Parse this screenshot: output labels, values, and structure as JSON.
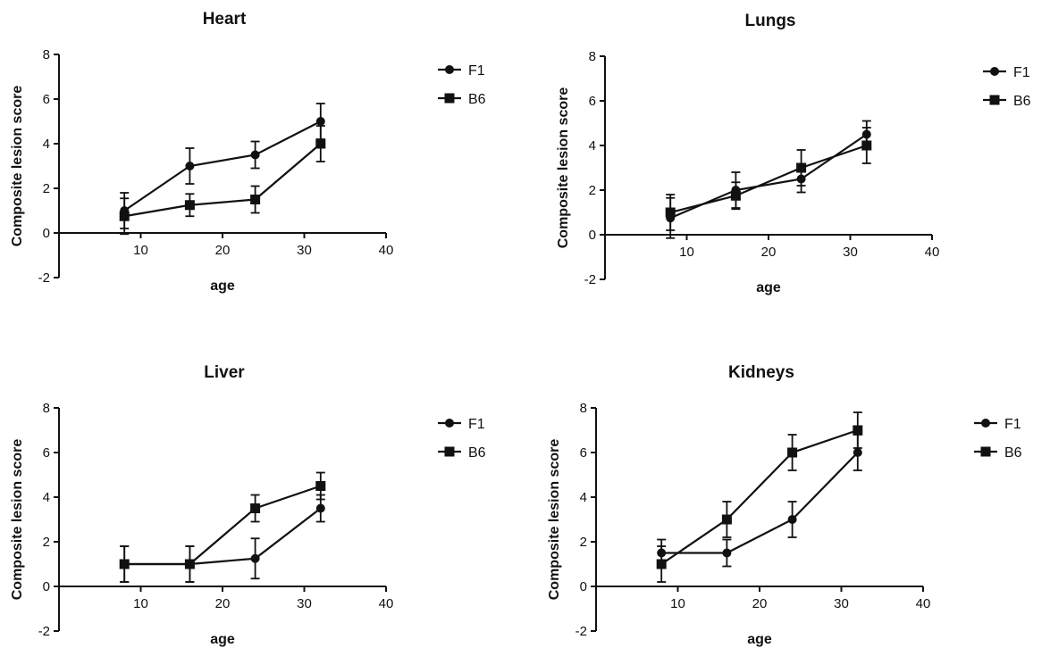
{
  "chart_data": [
    {
      "type": "line",
      "title": "Heart",
      "xlabel": "age",
      "ylabel": "Composite lesion score",
      "xlim": [
        0,
        40
      ],
      "ylim": [
        -2,
        8
      ],
      "xticks": [
        10,
        20,
        30,
        40
      ],
      "yticks": [
        -2,
        0,
        2,
        4,
        6,
        8
      ],
      "x": [
        8,
        16,
        24,
        32
      ],
      "legend_position": "right",
      "series": [
        {
          "name": "F1",
          "marker": "circle",
          "values": [
            1,
            3,
            3.5,
            5
          ],
          "errors": [
            0.8,
            0.8,
            0.6,
            0.8
          ]
        },
        {
          "name": "B6",
          "marker": "square",
          "values": [
            0.75,
            1.25,
            1.5,
            4
          ],
          "errors": [
            0.8,
            0.5,
            0.6,
            0.8
          ]
        }
      ]
    },
    {
      "type": "line",
      "title": "Lungs",
      "xlabel": "age",
      "ylabel": "Composite lesion score",
      "xlim": [
        0,
        40
      ],
      "ylim": [
        -2,
        8
      ],
      "xticks": [
        10,
        20,
        30,
        40
      ],
      "yticks": [
        -2,
        0,
        2,
        4,
        6,
        8
      ],
      "x": [
        8,
        16,
        24,
        32
      ],
      "legend_position": "right",
      "series": [
        {
          "name": "F1",
          "marker": "circle",
          "values": [
            0.75,
            2,
            2.5,
            4.5
          ],
          "errors": [
            0.9,
            0.8,
            0.6,
            0.6
          ]
        },
        {
          "name": "B6",
          "marker": "square",
          "values": [
            1,
            1.75,
            3,
            4
          ],
          "errors": [
            0.8,
            0.6,
            0.8,
            0.8
          ]
        }
      ]
    },
    {
      "type": "line",
      "title": "Liver",
      "xlabel": "age",
      "ylabel": "Composite lesion score",
      "xlim": [
        0,
        40
      ],
      "ylim": [
        -2,
        8
      ],
      "xticks": [
        10,
        20,
        30,
        40
      ],
      "yticks": [
        -2,
        0,
        2,
        4,
        6,
        8
      ],
      "x": [
        8,
        16,
        24,
        32
      ],
      "legend_position": "right",
      "series": [
        {
          "name": "F1",
          "marker": "circle",
          "values": [
            1,
            1,
            1.25,
            3.5
          ],
          "errors": [
            0.8,
            0.8,
            0.9,
            0.6
          ]
        },
        {
          "name": "B6",
          "marker": "square",
          "values": [
            1,
            1,
            3.5,
            4.5
          ],
          "errors": [
            0.8,
            0.8,
            0.6,
            0.6
          ]
        }
      ]
    },
    {
      "type": "line",
      "title": "Kidneys",
      "xlabel": "age",
      "ylabel": "Composite lesion score",
      "xlim": [
        0,
        40
      ],
      "ylim": [
        -2,
        8
      ],
      "xticks": [
        10,
        20,
        30,
        40
      ],
      "yticks": [
        -2,
        0,
        2,
        4,
        6,
        8
      ],
      "x": [
        8,
        16,
        24,
        32
      ],
      "legend_position": "right",
      "series": [
        {
          "name": "F1",
          "marker": "circle",
          "values": [
            1.5,
            1.5,
            3,
            6
          ],
          "errors": [
            0.6,
            0.6,
            0.8,
            0.8
          ]
        },
        {
          "name": "B6",
          "marker": "square",
          "values": [
            1,
            3,
            6,
            7
          ],
          "errors": [
            0.8,
            0.8,
            0.8,
            0.8
          ]
        }
      ]
    }
  ]
}
